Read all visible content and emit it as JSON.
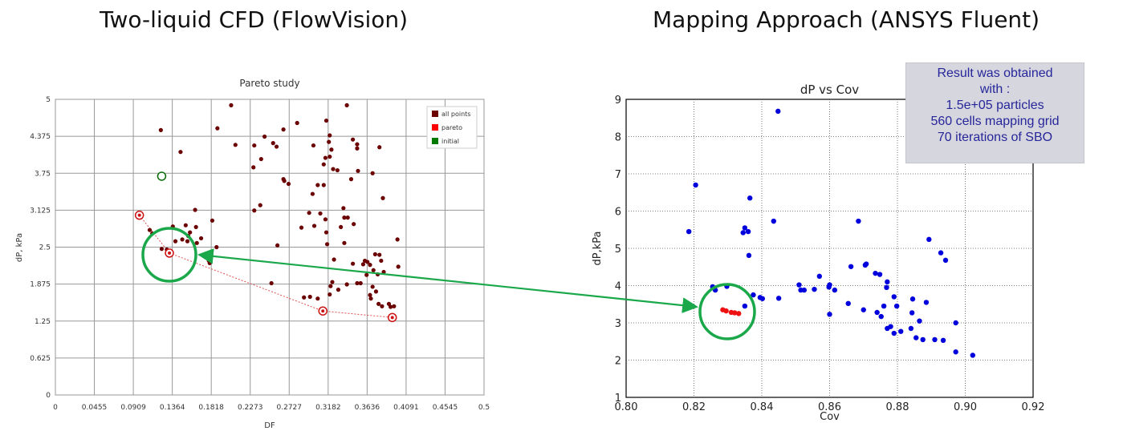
{
  "headings": {
    "left": "Two-liquid CFD (FlowVision)",
    "right": "Mapping Approach (ANSYS Fluent)"
  },
  "info_box": {
    "lines": [
      "Result was obtained",
      "with :",
      "1.5e+05 particles",
      "560 cells mapping grid",
      "70 iterations of SBO"
    ]
  },
  "colors": {
    "all_points": "#6b0000",
    "pareto": "#ff0000",
    "initial": "#007a00",
    "blue_points": "#0000dd",
    "red_points": "#ee1111",
    "green_annotation": "#1aa84a",
    "grid": "#999999"
  },
  "chart_data": [
    {
      "type": "scatter",
      "title": "Pareto study",
      "xlabel": "DF",
      "ylabel": "dP, kPa",
      "xlim": [
        0,
        0.5
      ],
      "ylim": [
        0,
        5
      ],
      "xticks": [
        "0",
        "0.0455",
        "0.0909",
        "0.1364",
        "0.1818",
        "0.2273",
        "0.2727",
        "0.3182",
        "0.3636",
        "0.4091",
        "0.4545",
        "0.5"
      ],
      "yticks": [
        "0",
        "0.625",
        "1.25",
        "1.875",
        "2.5",
        "3.125",
        "3.75",
        "4.375",
        "5"
      ],
      "grid": true,
      "legend_position": "top-right",
      "series": [
        {
          "name": "all points",
          "points": [
            [
              0.123,
              4.48
            ],
            [
              0.146,
              4.11
            ],
            [
              0.205,
              4.9
            ],
            [
              0.189,
              4.51
            ],
            [
              0.21,
              4.23
            ],
            [
              0.232,
              4.22
            ],
            [
              0.244,
              4.37
            ],
            [
              0.254,
              4.26
            ],
            [
              0.258,
              4.2
            ],
            [
              0.266,
              4.49
            ],
            [
              0.282,
              4.6
            ],
            [
              0.231,
              3.85
            ],
            [
              0.24,
              3.99
            ],
            [
              0.266,
              3.65
            ],
            [
              0.267,
              3.62
            ],
            [
              0.272,
              3.57
            ],
            [
              0.301,
              4.22
            ],
            [
              0.316,
              4.64
            ],
            [
              0.32,
              4.39
            ],
            [
              0.319,
              4.28
            ],
            [
              0.322,
              4.15
            ],
            [
              0.313,
              3.9
            ],
            [
              0.315,
              4.01
            ],
            [
              0.32,
              4.03
            ],
            [
              0.324,
              3.82
            ],
            [
              0.329,
              3.8
            ],
            [
              0.34,
              4.9
            ],
            [
              0.347,
              4.32
            ],
            [
              0.352,
              4.24
            ],
            [
              0.353,
              3.79
            ],
            [
              0.352,
              4.17
            ],
            [
              0.345,
              3.65
            ],
            [
              0.378,
              4.19
            ],
            [
              0.37,
              3.75
            ],
            [
              0.306,
              3.55
            ],
            [
              0.313,
              3.55
            ],
            [
              0.3,
              3.4
            ],
            [
              0.296,
              3.08
            ],
            [
              0.309,
              3.07
            ],
            [
              0.315,
              2.97
            ],
            [
              0.316,
              2.75
            ],
            [
              0.336,
              3.16
            ],
            [
              0.337,
              3.0
            ],
            [
              0.341,
              3.0
            ],
            [
              0.348,
              2.89
            ],
            [
              0.382,
              3.33
            ],
            [
              0.232,
              3.12
            ],
            [
              0.239,
              3.21
            ],
            [
              0.183,
              2.95
            ],
            [
              0.163,
              3.13
            ],
            [
              0.287,
              2.83
            ],
            [
              0.302,
              2.86
            ],
            [
              0.333,
              2.84
            ],
            [
              0.317,
              2.55
            ],
            [
              0.337,
              2.57
            ],
            [
              0.325,
              2.29
            ],
            [
              0.259,
              2.53
            ],
            [
              0.188,
              2.5
            ],
            [
              0.148,
              2.63
            ],
            [
              0.155,
              2.69
            ],
            [
              0.137,
              2.85
            ],
            [
              0.164,
              2.84
            ],
            [
              0.17,
              2.65
            ],
            [
              0.154,
              2.6
            ],
            [
              0.165,
              2.57
            ],
            [
              0.14,
              2.6
            ],
            [
              0.13,
              2.46
            ],
            [
              0.124,
              2.47
            ],
            [
              0.11,
              2.79
            ],
            [
              0.113,
              2.73
            ],
            [
              0.175,
              2.35
            ],
            [
              0.179,
              2.27
            ],
            [
              0.157,
              2.75
            ],
            [
              0.152,
              2.87
            ],
            [
              0.18,
              2.23
            ],
            [
              0.373,
              2.38
            ],
            [
              0.378,
              2.37
            ],
            [
              0.38,
              2.27
            ],
            [
              0.399,
              2.63
            ],
            [
              0.4,
              2.17
            ],
            [
              0.347,
              2.22
            ],
            [
              0.364,
              2.25
            ],
            [
              0.361,
              2.27
            ],
            [
              0.367,
              2.2
            ],
            [
              0.359,
              2.21
            ],
            [
              0.371,
              2.11
            ],
            [
              0.376,
              2.04
            ],
            [
              0.383,
              2.08
            ],
            [
              0.363,
              2.03
            ],
            [
              0.356,
              1.89
            ],
            [
              0.37,
              1.83
            ],
            [
              0.352,
              1.89
            ],
            [
              0.367,
              1.69
            ],
            [
              0.368,
              1.63
            ],
            [
              0.374,
              1.75
            ],
            [
              0.34,
              1.87
            ],
            [
              0.323,
              1.91
            ],
            [
              0.321,
              1.84
            ],
            [
              0.33,
              1.78
            ],
            [
              0.32,
              1.7
            ],
            [
              0.306,
              1.63
            ],
            [
              0.297,
              1.66
            ],
            [
              0.29,
              1.65
            ],
            [
              0.377,
              1.54
            ],
            [
              0.389,
              1.54
            ],
            [
              0.391,
              1.49
            ],
            [
              0.395,
              1.5
            ],
            [
              0.252,
              1.89
            ],
            [
              0.381,
              1.5
            ]
          ]
        },
        {
          "name": "pareto",
          "points": [
            [
              0.098,
              3.04
            ],
            [
              0.133,
              2.4
            ],
            [
              0.312,
              1.42
            ],
            [
              0.393,
              1.31
            ]
          ]
        },
        {
          "name": "initial",
          "points": [
            [
              0.124,
              3.7
            ]
          ]
        }
      ]
    },
    {
      "type": "scatter",
      "title": "dP vs Cov",
      "xlabel": "Cov",
      "ylabel": "dP,kPa",
      "xlim": [
        0.8,
        0.92
      ],
      "ylim": [
        1,
        9
      ],
      "xticks": [
        "0.80",
        "0.82",
        "0.84",
        "0.86",
        "0.88",
        "0.90",
        "0.92"
      ],
      "yticks": [
        "1",
        "2",
        "3",
        "4",
        "5",
        "6",
        "7",
        "8",
        "9"
      ],
      "grid": true,
      "series": [
        {
          "points": [
            [
              0.8185,
              5.45
            ],
            [
              0.8205,
              6.7
            ],
            [
              0.8255,
              3.97
            ],
            [
              0.8263,
              3.88
            ],
            [
              0.8297,
              3.98
            ],
            [
              0.8345,
              5.42
            ],
            [
              0.835,
              5.55
            ],
            [
              0.836,
              5.45
            ],
            [
              0.8365,
              6.35
            ],
            [
              0.8362,
              4.81
            ],
            [
              0.835,
              3.45
            ],
            [
              0.8375,
              3.75
            ],
            [
              0.8395,
              3.68
            ],
            [
              0.8402,
              3.65
            ],
            [
              0.8435,
              5.73
            ],
            [
              0.8448,
              8.68
            ],
            [
              0.845,
              3.66
            ],
            [
              0.851,
              4.02
            ],
            [
              0.8515,
              3.88
            ],
            [
              0.8525,
              3.88
            ],
            [
              0.8555,
              3.9
            ],
            [
              0.857,
              4.25
            ],
            [
              0.86,
              4.02
            ],
            [
              0.8598,
              3.96
            ],
            [
              0.86,
              3.23
            ],
            [
              0.8615,
              3.88
            ],
            [
              0.8655,
              3.52
            ],
            [
              0.8663,
              4.51
            ],
            [
              0.8685,
              5.73
            ],
            [
              0.87,
              3.35
            ],
            [
              0.8705,
              4.55
            ],
            [
              0.8708,
              4.58
            ],
            [
              0.8735,
              4.33
            ],
            [
              0.874,
              3.28
            ],
            [
              0.8748,
              4.3
            ],
            [
              0.8752,
              3.17
            ],
            [
              0.876,
              3.45
            ],
            [
              0.8768,
              3.95
            ],
            [
              0.877,
              4.1
            ],
            [
              0.877,
              2.85
            ],
            [
              0.878,
              2.9
            ],
            [
              0.879,
              2.72
            ],
            [
              0.879,
              3.7
            ],
            [
              0.8798,
              3.45
            ],
            [
              0.881,
              2.77
            ],
            [
              0.884,
              2.85
            ],
            [
              0.8843,
              3.27
            ],
            [
              0.8845,
              3.64
            ],
            [
              0.8855,
              2.6
            ],
            [
              0.8865,
              3.05
            ],
            [
              0.8875,
              2.55
            ],
            [
              0.8885,
              3.55
            ],
            [
              0.8893,
              5.24
            ],
            [
              0.891,
              2.55
            ],
            [
              0.8928,
              4.88
            ],
            [
              0.8935,
              2.53
            ],
            [
              0.8942,
              4.68
            ],
            [
              0.8972,
              3.0
            ],
            [
              0.8972,
              2.22
            ],
            [
              0.9022,
              2.13
            ]
          ]
        },
        {
          "points": [
            [
              0.8285,
              3.35
            ],
            [
              0.8295,
              3.32
            ],
            [
              0.831,
              3.28
            ],
            [
              0.832,
              3.27
            ],
            [
              0.8332,
              3.25
            ]
          ]
        }
      ]
    }
  ]
}
